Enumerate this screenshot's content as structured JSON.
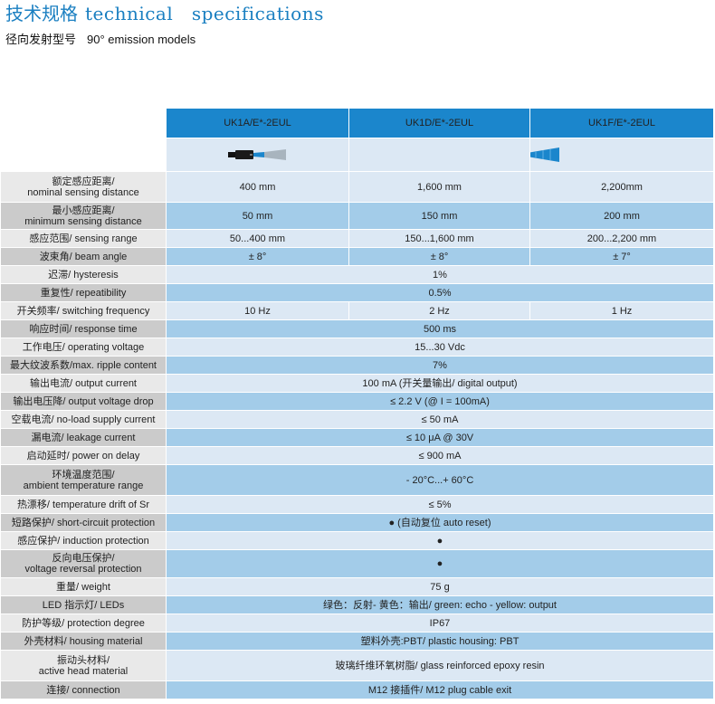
{
  "header": {
    "title_cn": "技术规格",
    "title_en": "technical   specifications",
    "subtitle_cn": "径向发射型号",
    "subtitle_en": "90° emission models"
  },
  "columns": [
    "UK1A/E*-2EUL",
    "UK1D/E*-2EUL",
    "UK1F/E*-2EUL"
  ],
  "icons": {
    "sensor_a": "sensor-narrow-beam-icon",
    "sensor_f": "sensor-wide-beam-icon",
    "beam_color": "#1b86cc"
  },
  "rows": [
    {
      "label_cn": "额定感应距离/",
      "label_en": "nominal sensing distance",
      "values": [
        "400 mm",
        "1,600 mm",
        "2,200mm"
      ]
    },
    {
      "label_cn": "最小感应距离/",
      "label_en": "minimum sensing distance",
      "values": [
        "50 mm",
        "150 mm",
        "200 mm"
      ]
    },
    {
      "label": "感应范围/ sensing range",
      "values": [
        "50...400 mm",
        "150...1,600 mm",
        "200...2,200 mm"
      ]
    },
    {
      "label": "波束角/ beam angle",
      "values": [
        "± 8°",
        "± 8°",
        "± 7°"
      ]
    },
    {
      "label": "迟滞/ hysteresis",
      "value": "1%"
    },
    {
      "label": "重复性/ repeatibility",
      "value": "0.5%"
    },
    {
      "label": "开关频率/ switching frequency",
      "values": [
        "10 Hz",
        "2 Hz",
        "1 Hz"
      ]
    },
    {
      "label": "响应时间/ response time",
      "value": "500 ms"
    },
    {
      "label": "工作电压/ operating voltage",
      "value": "15...30 Vdc"
    },
    {
      "label": "最大纹波系数/max. ripple content",
      "value": "7%"
    },
    {
      "label": "输出电流/ output current",
      "value": "100 mA (开关量输出/ digital output)"
    },
    {
      "label": "输出电压降/ output voltage drop",
      "value": "≤ 2.2 V (@ I = 100mA)"
    },
    {
      "label": "空载电流/ no-load supply current",
      "value": "≤ 50 mA"
    },
    {
      "label": "漏电流/ leakage current",
      "value": "≤ 10 μA @ 30V"
    },
    {
      "label": "启动延时/ power on delay",
      "value": "≤ 900 mA"
    },
    {
      "label_cn": "环境温度范围/",
      "label_en": "ambient temperature range",
      "value": "- 20°C...+ 60°C"
    },
    {
      "label": "热漂移/ temperature drift of Sr",
      "value": "≤ 5%"
    },
    {
      "label": "短路保护/ short-circuit protection",
      "value": "● (自动复位 auto reset)"
    },
    {
      "label": "感应保护/ induction protection",
      "value": "●"
    },
    {
      "label_cn": "反向电压保护/",
      "label_en": "voltage reversal protection",
      "value": "●"
    },
    {
      "label": "重量/ weight",
      "value": "75 g"
    },
    {
      "label": "LED 指示灯/ LEDs",
      "value": "绿色：反射- 黄色：输出/ green: echo - yellow: output"
    },
    {
      "label": "防护等级/ protection degree",
      "value": "IP67"
    },
    {
      "label": "外壳材料/ housing material",
      "value": "塑料外壳:PBT/ plastic housing: PBT"
    },
    {
      "label_cn": "振动头材料/",
      "label_en": "active head material",
      "value": "玻璃纤维环氧树脂/ glass reinforced epoxy resin"
    },
    {
      "label": "连接/ connection",
      "value": "M12 接插件/ M12 plug cable exit"
    }
  ]
}
